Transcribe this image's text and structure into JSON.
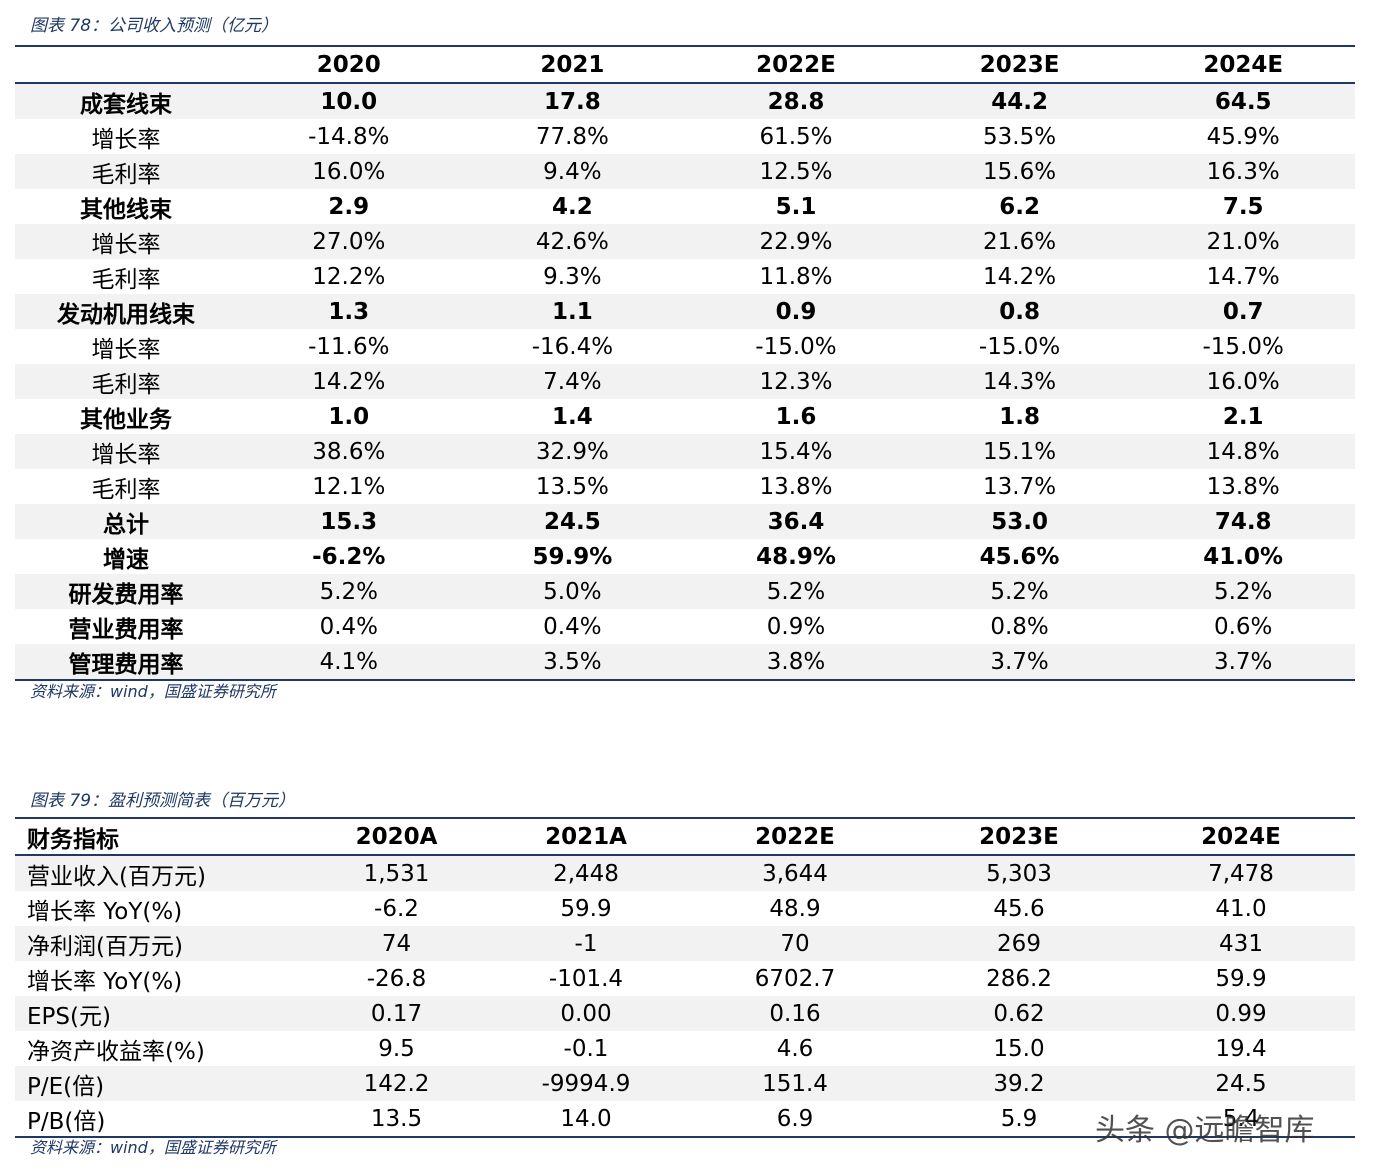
{
  "table1": {
    "caption": "图表 78：公司收入预测（亿元）",
    "header": [
      "2020",
      "2021",
      "2022E",
      "2023E",
      "2024E"
    ],
    "rows": [
      {
        "label": "成套线束",
        "bold": true,
        "cells": [
          "10.0",
          "17.8",
          "28.8",
          "44.2",
          "64.5"
        ]
      },
      {
        "label": "增长率",
        "cells": [
          "-14.8%",
          "77.8%",
          "61.5%",
          "53.5%",
          "45.9%"
        ]
      },
      {
        "label": "毛利率",
        "cells": [
          "16.0%",
          "9.4%",
          "12.5%",
          "15.6%",
          "16.3%"
        ]
      },
      {
        "label": "其他线束",
        "bold": true,
        "cells": [
          "2.9",
          "4.2",
          "5.1",
          "6.2",
          "7.5"
        ]
      },
      {
        "label": "增长率",
        "cells": [
          "27.0%",
          "42.6%",
          "22.9%",
          "21.6%",
          "21.0%"
        ]
      },
      {
        "label": "毛利率",
        "cells": [
          "12.2%",
          "9.3%",
          "11.8%",
          "14.2%",
          "14.7%"
        ]
      },
      {
        "label": "发动机用线束",
        "bold": true,
        "cells": [
          "1.3",
          "1.1",
          "0.9",
          "0.8",
          "0.7"
        ]
      },
      {
        "label": "增长率",
        "cells": [
          "-11.6%",
          "-16.4%",
          "-15.0%",
          "-15.0%",
          "-15.0%"
        ]
      },
      {
        "label": "毛利率",
        "cells": [
          "14.2%",
          "7.4%",
          "12.3%",
          "14.3%",
          "16.0%"
        ]
      },
      {
        "label": "其他业务",
        "bold": true,
        "cells": [
          "1.0",
          "1.4",
          "1.6",
          "1.8",
          "2.1"
        ]
      },
      {
        "label": "增长率",
        "cells": [
          "38.6%",
          "32.9%",
          "15.4%",
          "15.1%",
          "14.8%"
        ]
      },
      {
        "label": "毛利率",
        "cells": [
          "12.1%",
          "13.5%",
          "13.8%",
          "13.7%",
          "13.8%"
        ]
      },
      {
        "label": "总计",
        "bold": true,
        "cells": [
          "15.3",
          "24.5",
          "36.4",
          "53.0",
          "74.8"
        ]
      },
      {
        "label": "增速",
        "bold": true,
        "cells": [
          "-6.2%",
          "59.9%",
          "48.9%",
          "45.6%",
          "41.0%"
        ]
      },
      {
        "label": "研发费用率",
        "label_bold": true,
        "cells": [
          "5.2%",
          "5.0%",
          "5.2%",
          "5.2%",
          "5.2%"
        ]
      },
      {
        "label": "营业费用率",
        "label_bold": true,
        "cells": [
          "0.4%",
          "0.4%",
          "0.9%",
          "0.8%",
          "0.6%"
        ]
      },
      {
        "label": "管理费用率",
        "label_bold": true,
        "cells": [
          "4.1%",
          "3.5%",
          "3.8%",
          "3.7%",
          "3.7%"
        ]
      }
    ],
    "source": "资料来源：wind，国盛证券研究所"
  },
  "table2": {
    "caption": "图表 79：盈利预测简表（百万元）",
    "header": [
      "财务指标",
      "2020A",
      "2021A",
      "2022E",
      "2023E",
      "2024E"
    ],
    "rows": [
      [
        "营业收入(百万元)",
        "1,531",
        "2,448",
        "3,644",
        "5,303",
        "7,478"
      ],
      [
        "增长率 YoY(%)",
        "-6.2",
        "59.9",
        "48.9",
        "45.6",
        "41.0"
      ],
      [
        "净利润(百万元)",
        "74",
        "-1",
        "70",
        "269",
        "431"
      ],
      [
        "增长率 YoY(%)",
        "-26.8",
        "-101.4",
        "6702.7",
        "286.2",
        "59.9"
      ],
      [
        "EPS(元)",
        "0.17",
        "0.00",
        "0.16",
        "0.62",
        "0.99"
      ],
      [
        "净资产收益率(%)",
        "9.5",
        "-0.1",
        "4.6",
        "15.0",
        "19.4"
      ],
      [
        "P/E(倍)",
        "142.2",
        "-9994.9",
        "151.4",
        "39.2",
        "24.5"
      ],
      [
        "P/B(倍)",
        "13.5",
        "14.0",
        "6.9",
        "5.9",
        "5.4"
      ]
    ],
    "source": "资料来源：wind，国盛证券研究所"
  },
  "watermark": "头条 @远瞻智库"
}
